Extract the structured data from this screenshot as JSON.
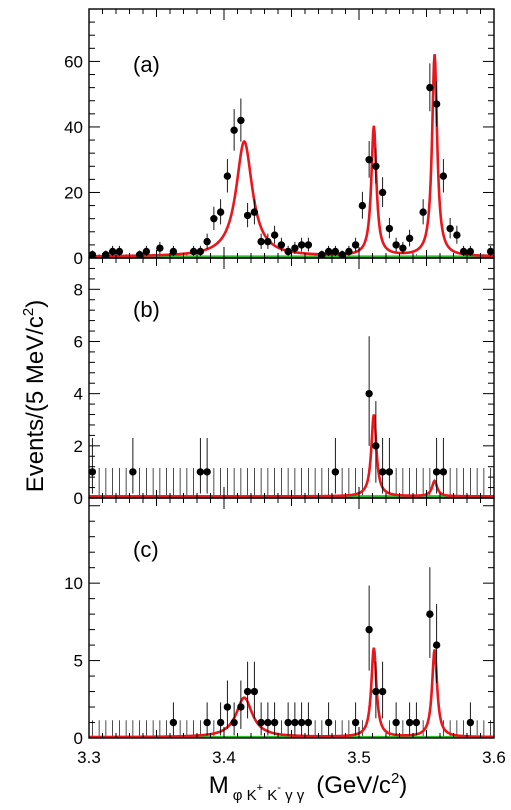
{
  "chart_data": {
    "type": "scatter",
    "layout": "three vertically stacked panels sharing the x axis",
    "xlabel": {
      "main": "M",
      "sub_parts": [
        {
          "t": "φ K"
        },
        {
          "t": "+",
          "sup": true
        },
        {
          "t": " K"
        },
        {
          "t": "-",
          "sup": true
        },
        {
          "t": " γ γ"
        }
      ],
      "unit_open": "(GeV/c",
      "unit_sup": "2",
      "unit_close": ")"
    },
    "ylabel": {
      "main": "Events/(5 MeV/c",
      "sup": "2",
      "close": ")"
    },
    "xlim": [
      3.3,
      3.6
    ],
    "x_ticks": [
      3.3,
      3.4,
      3.5,
      3.6
    ],
    "x_tick_labels": [
      "3.3",
      "3.4",
      "3.5",
      "3.6"
    ],
    "colors": {
      "fit": "#e8161d",
      "background": "#22c322",
      "data": "#000000",
      "axes": "#000000"
    },
    "bin_width": 0.005,
    "panels": [
      {
        "label": "(a)",
        "ylim": [
          0,
          76
        ],
        "y_ticks": [
          0,
          20,
          40,
          60
        ],
        "y_tick_labels": [
          "0",
          "20",
          "40",
          "60"
        ],
        "points": [
          [
            3.3025,
            1
          ],
          [
            3.3125,
            1
          ],
          [
            3.3175,
            2
          ],
          [
            3.3225,
            2
          ],
          [
            3.3375,
            1
          ],
          [
            3.3425,
            2
          ],
          [
            3.3525,
            3
          ],
          [
            3.3625,
            2
          ],
          [
            3.3775,
            2
          ],
          [
            3.3825,
            2
          ],
          [
            3.3875,
            5
          ],
          [
            3.3925,
            12
          ],
          [
            3.3975,
            14
          ],
          [
            3.4025,
            25
          ],
          [
            3.4075,
            39
          ],
          [
            3.4125,
            42
          ],
          [
            3.4175,
            13
          ],
          [
            3.4225,
            14
          ],
          [
            3.4275,
            5
          ],
          [
            3.4325,
            5
          ],
          [
            3.4375,
            7
          ],
          [
            3.4425,
            4
          ],
          [
            3.4475,
            2
          ],
          [
            3.4525,
            3
          ],
          [
            3.4575,
            4
          ],
          [
            3.4625,
            4
          ],
          [
            3.4725,
            1
          ],
          [
            3.4775,
            2
          ],
          [
            3.4825,
            2
          ],
          [
            3.4875,
            1
          ],
          [
            3.4925,
            2
          ],
          [
            3.4975,
            4
          ],
          [
            3.5025,
            16
          ],
          [
            3.5075,
            30
          ],
          [
            3.5125,
            28
          ],
          [
            3.5175,
            20
          ],
          [
            3.5225,
            9
          ],
          [
            3.5275,
            4
          ],
          [
            3.5325,
            3
          ],
          [
            3.5375,
            6
          ],
          [
            3.5475,
            14
          ],
          [
            3.5525,
            52
          ],
          [
            3.5575,
            47
          ],
          [
            3.5625,
            25
          ],
          [
            3.5675,
            9
          ],
          [
            3.5725,
            7
          ],
          [
            3.5775,
            2
          ],
          [
            3.5825,
            2
          ],
          [
            3.5975,
            2
          ]
        ],
        "fit_peaks": [
          {
            "mass": 3.415,
            "height": 35.5,
            "gamma": 0.0145
          },
          {
            "mass": 3.511,
            "height": 40,
            "gamma": 0.0045
          },
          {
            "mass": 3.556,
            "height": 62,
            "gamma": 0.0045
          }
        ],
        "background_level": 0.4
      },
      {
        "label": "(b)",
        "ylim": [
          0,
          9.2
        ],
        "y_ticks": [
          0,
          2,
          4,
          6,
          8
        ],
        "y_tick_labels": [
          "0",
          "2",
          "4",
          "6",
          "8"
        ],
        "points": [
          [
            3.3025,
            1
          ],
          [
            3.3325,
            1
          ],
          [
            3.3825,
            1
          ],
          [
            3.3875,
            1
          ],
          [
            3.4825,
            1
          ],
          [
            3.5075,
            4
          ],
          [
            3.5125,
            2
          ],
          [
            3.5175,
            1
          ],
          [
            3.5225,
            1
          ],
          [
            3.5575,
            1
          ],
          [
            3.5625,
            1
          ]
        ],
        "fit_peaks": [
          {
            "mass": 3.511,
            "height": 3.2,
            "gamma": 0.0045
          },
          {
            "mass": 3.556,
            "height": 0.65,
            "gamma": 0.0045
          }
        ],
        "background_level": 0.06
      },
      {
        "label": "(c)",
        "ylim": [
          0,
          15.5
        ],
        "y_ticks": [
          0,
          5,
          10
        ],
        "y_tick_labels": [
          "0",
          "5",
          "10"
        ],
        "points": [
          [
            3.3625,
            1
          ],
          [
            3.3875,
            1
          ],
          [
            3.3975,
            1
          ],
          [
            3.4025,
            2
          ],
          [
            3.4075,
            1
          ],
          [
            3.4125,
            2
          ],
          [
            3.4175,
            3
          ],
          [
            3.4225,
            3
          ],
          [
            3.4275,
            1
          ],
          [
            3.4325,
            1
          ],
          [
            3.4375,
            1
          ],
          [
            3.4475,
            1
          ],
          [
            3.4525,
            1
          ],
          [
            3.4575,
            1
          ],
          [
            3.4625,
            1
          ],
          [
            3.4775,
            1
          ],
          [
            3.4975,
            1
          ],
          [
            3.5075,
            7
          ],
          [
            3.5125,
            3
          ],
          [
            3.5175,
            3
          ],
          [
            3.5275,
            1
          ],
          [
            3.5375,
            1
          ],
          [
            3.5425,
            1
          ],
          [
            3.5525,
            8
          ],
          [
            3.5575,
            6
          ],
          [
            3.5825,
            1
          ]
        ],
        "fit_peaks": [
          {
            "mass": 3.415,
            "height": 2.6,
            "gamma": 0.0145
          },
          {
            "mass": 3.511,
            "height": 5.8,
            "gamma": 0.0045
          },
          {
            "mass": 3.556,
            "height": 5.7,
            "gamma": 0.0045
          }
        ],
        "background_level": 0.05
      }
    ]
  }
}
